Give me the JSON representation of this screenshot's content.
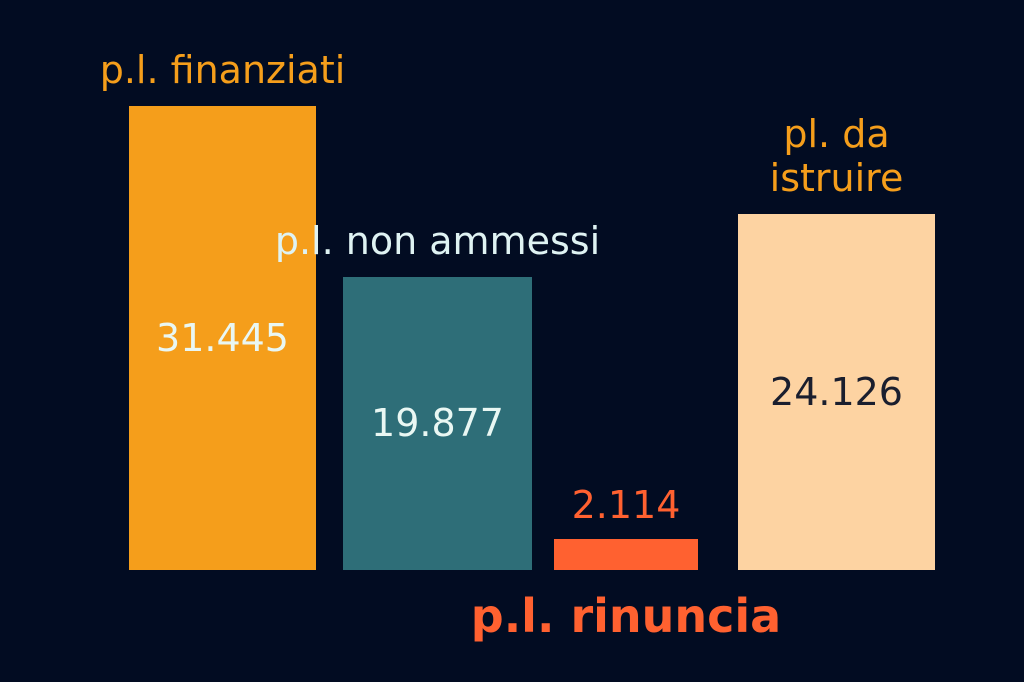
{
  "chart_data": {
    "type": "bar",
    "categories": [
      "p.l. finanziati",
      "p.l. non ammessi",
      "p.l. rinuncia",
      "pl. da istruire"
    ],
    "values": [
      31445,
      19877,
      2114,
      24126
    ],
    "value_labels": [
      "31.445",
      "19.877",
      "2.114",
      "24.126"
    ],
    "colors": [
      "#f59e1b",
      "#2e6e78",
      "#ff6130",
      "#fdd3a2"
    ]
  }
}
